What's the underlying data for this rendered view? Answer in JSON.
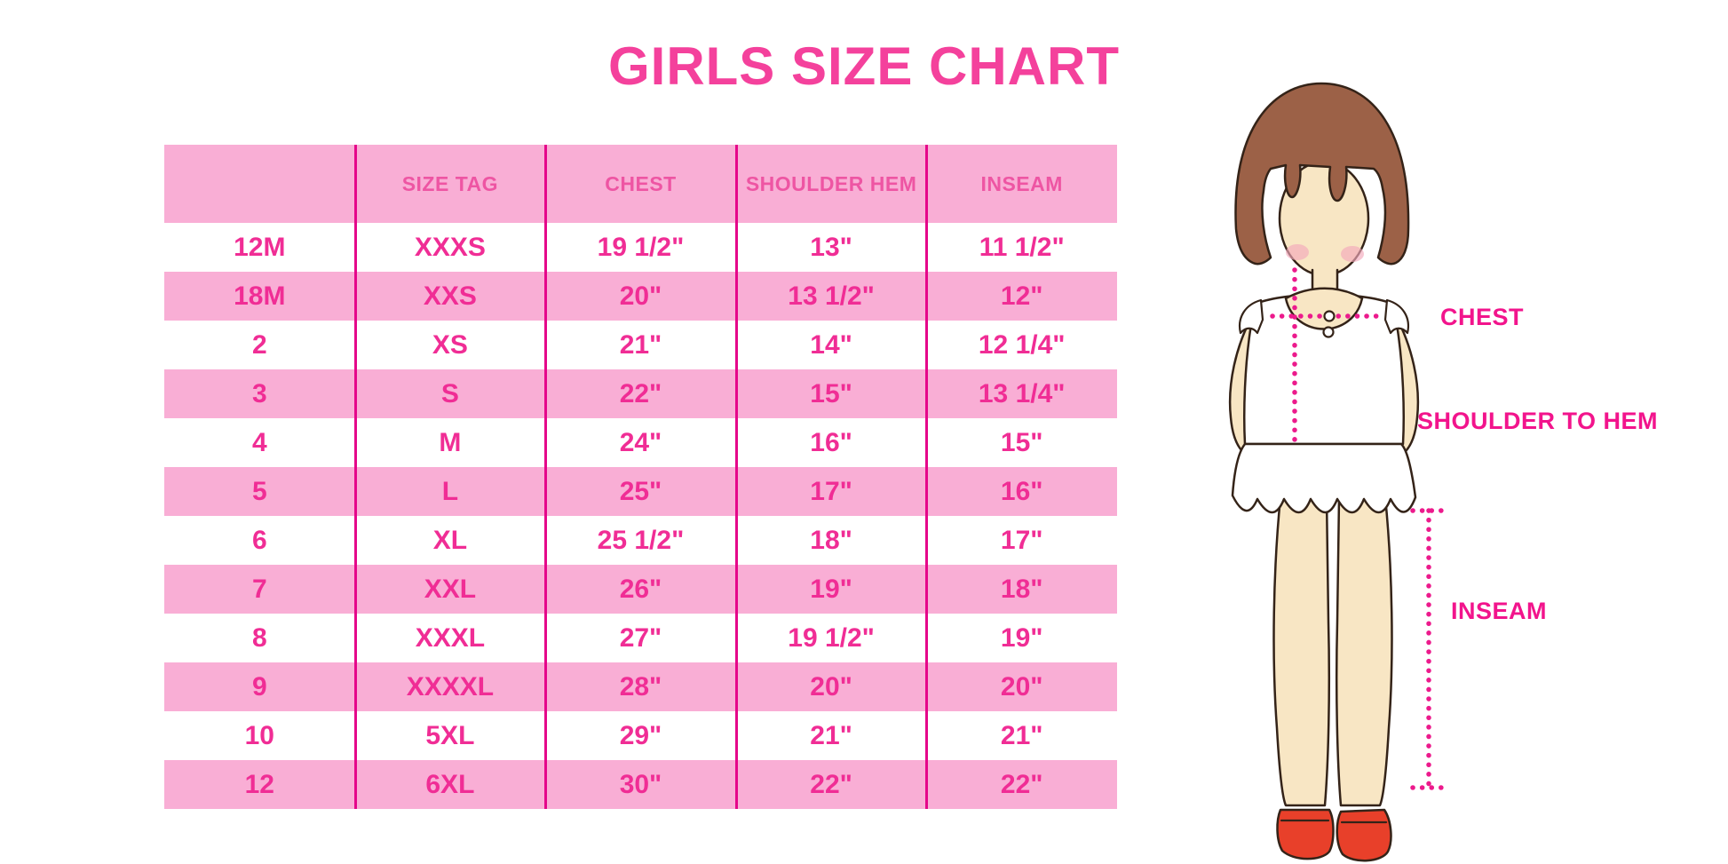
{
  "page": {
    "title": "GIRLS SIZE CHART"
  },
  "chart_data": {
    "type": "table",
    "title": "GIRLS SIZE CHART",
    "columns": [
      "",
      "SIZE TAG",
      "CHEST",
      "SHOULDER HEM",
      "INSEAM"
    ],
    "rows": [
      [
        "12M",
        "XXXS",
        "19 1/2\"",
        "13\"",
        "11 1/2\""
      ],
      [
        "18M",
        "XXS",
        "20\"",
        "13 1/2\"",
        "12\""
      ],
      [
        "2",
        "XS",
        "21\"",
        "14\"",
        "12 1/4\""
      ],
      [
        "3",
        "S",
        "22\"",
        "15\"",
        "13 1/4\""
      ],
      [
        "4",
        "M",
        "24\"",
        "16\"",
        "15\""
      ],
      [
        "5",
        "L",
        "25\"",
        "17\"",
        "16\""
      ],
      [
        "6",
        "XL",
        "25 1/2\"",
        "18\"",
        "17\""
      ],
      [
        "7",
        "XXL",
        "26\"",
        "19\"",
        "18\""
      ],
      [
        "8",
        "XXXL",
        "27\"",
        "19 1/2\"",
        "19\""
      ],
      [
        "9",
        "XXXXL",
        "28\"",
        "20\"",
        "20\""
      ],
      [
        "10",
        "5XL",
        "29\"",
        "21\"",
        "21\""
      ],
      [
        "12",
        "6XL",
        "30\"",
        "22\"",
        "22\""
      ]
    ]
  },
  "figure": {
    "chest_label": "CHEST",
    "shoulder_to_hem_label": "SHOULDER TO HEM",
    "inseam_label": "INSEAM"
  },
  "colors": {
    "title_pink": "#F4419C",
    "row_pink": "#F9AED5",
    "divider_magenta": "#E5068A",
    "header_text_pink": "#EE55A3",
    "cell_text_pink": "#F02D95",
    "annotation_magenta": "#F2148C",
    "dotted_line_magenta": "#EC1A8C",
    "hair_brown": "#9C6147",
    "skin_tone": "#F8E6C4",
    "shoe_red": "#E8402A"
  }
}
